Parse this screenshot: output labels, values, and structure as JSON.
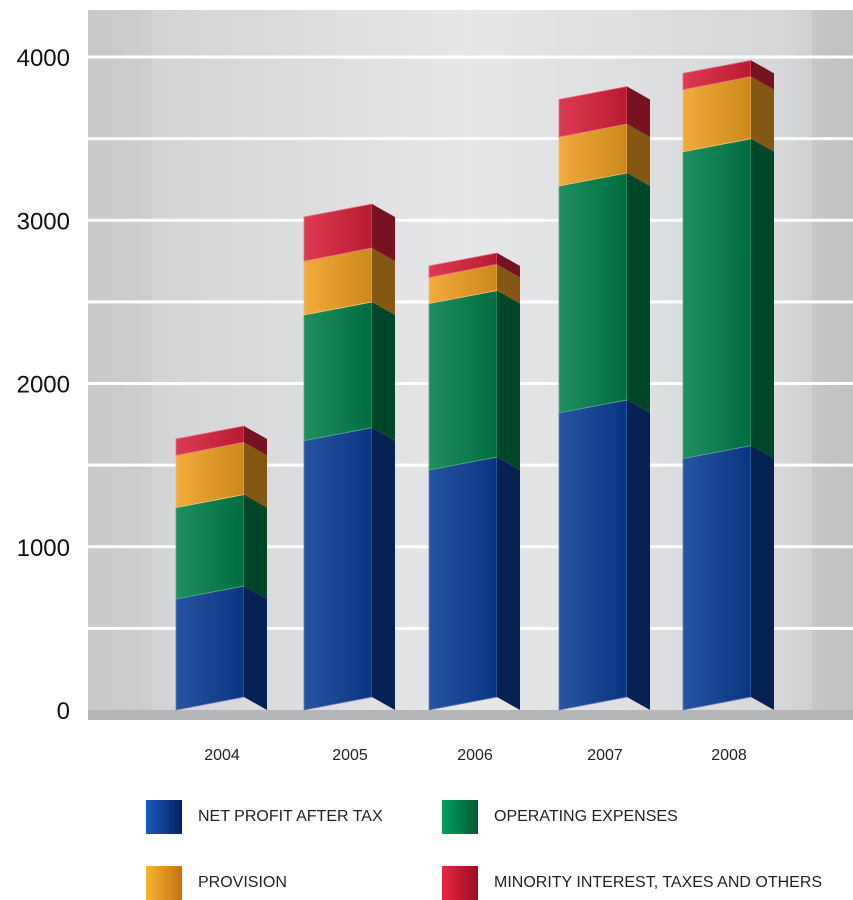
{
  "chart_data": {
    "type": "bar",
    "stacked": true,
    "categories": [
      "2004",
      "2005",
      "2006",
      "2007",
      "2008"
    ],
    "series": [
      {
        "name": "NET PROFIT AFTER TAX",
        "values": [
          680,
          1650,
          1470,
          1820,
          1540
        ],
        "color": "#0a3d96"
      },
      {
        "name": "OPERATING EXPENSES",
        "values": [
          560,
          770,
          1020,
          1390,
          1880
        ],
        "color": "#00804a"
      },
      {
        "name": "PROVISION",
        "values": [
          320,
          330,
          160,
          300,
          380
        ],
        "color": "#f0a020"
      },
      {
        "name": "MINORITY INTEREST, TAXES AND OTHERS",
        "values": [
          100,
          270,
          70,
          230,
          100
        ],
        "color": "#d8203a"
      }
    ],
    "yticks": [
      "0",
      "1000",
      "2000",
      "3000",
      "4000"
    ],
    "ylim": [
      0,
      4000
    ],
    "grid": true,
    "legend_position": "bottom"
  }
}
